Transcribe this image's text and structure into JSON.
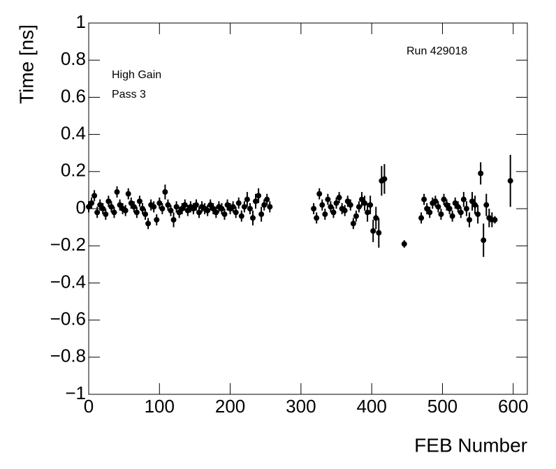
{
  "chart_data": {
    "type": "errorbar-scatter",
    "y_label": "Time [ns]",
    "x_label": "FEB Number",
    "annotations": [
      "Run 429018",
      "High Gain",
      "Pass 3"
    ],
    "color": "#000000",
    "xlim": [
      0,
      620
    ],
    "ylim": [
      -1,
      1
    ],
    "xticks": [
      0,
      100,
      200,
      300,
      400,
      500,
      600
    ],
    "yticks": [
      {
        "value": -1,
        "label": "−1"
      },
      {
        "value": -0.8,
        "label": "−0.8"
      },
      {
        "value": -0.6,
        "label": "−0.6"
      },
      {
        "value": -0.4,
        "label": "−0.4"
      },
      {
        "value": -0.2,
        "label": "−0.2"
      },
      0,
      0.2,
      0.4,
      0.6,
      0.8,
      1
    ],
    "x": [
      0,
      4,
      8,
      12,
      16,
      20,
      24,
      28,
      32,
      36,
      40,
      44,
      48,
      52,
      56,
      60,
      64,
      68,
      72,
      76,
      80,
      84,
      88,
      92,
      96,
      100,
      104,
      108,
      112,
      116,
      120,
      124,
      128,
      132,
      136,
      140,
      144,
      148,
      152,
      156,
      160,
      164,
      168,
      172,
      176,
      180,
      184,
      188,
      192,
      196,
      200,
      204,
      208,
      212,
      216,
      220,
      224,
      228,
      232,
      236,
      240,
      244,
      248,
      252,
      256,
      318,
      322,
      326,
      330,
      334,
      338,
      342,
      346,
      350,
      354,
      358,
      362,
      366,
      370,
      374,
      378,
      382,
      386,
      390,
      394,
      398,
      402,
      406,
      410,
      414,
      418,
      446,
      470,
      474,
      478,
      482,
      486,
      490,
      494,
      498,
      502,
      506,
      510,
      514,
      518,
      522,
      526,
      530,
      534,
      538,
      542,
      546,
      550,
      554,
      558,
      562,
      566,
      570,
      574,
      596
    ],
    "y": [
      0.01,
      0.03,
      0.07,
      -0.02,
      0.02,
      0.0,
      -0.03,
      0.04,
      0.01,
      -0.02,
      0.09,
      0.02,
      0.0,
      -0.01,
      0.08,
      0.03,
      0.01,
      -0.02,
      0.04,
      0.0,
      -0.03,
      -0.08,
      0.02,
      0.01,
      -0.06,
      0.03,
      0.0,
      0.09,
      0.02,
      -0.01,
      -0.06,
      0.01,
      -0.02,
      0.0,
      0.02,
      -0.01,
      0.01,
      0.0,
      0.02,
      -0.02,
      0.01,
      0.0,
      -0.01,
      0.02,
      0.0,
      -0.02,
      0.01,
      0.0,
      -0.03,
      0.02,
      0.0,
      0.01,
      -0.02,
      0.03,
      -0.04,
      0.01,
      0.05,
      0.0,
      -0.05,
      0.04,
      0.07,
      -0.03,
      0.02,
      0.05,
      0.01,
      0.0,
      -0.05,
      0.08,
      0.02,
      -0.03,
      0.05,
      0.01,
      -0.02,
      0.03,
      0.06,
      0.0,
      -0.01,
      0.04,
      0.02,
      -0.08,
      -0.04,
      0.01,
      0.05,
      0.03,
      -0.02,
      0.02,
      -0.12,
      -0.05,
      -0.13,
      0.15,
      0.16,
      -0.19,
      -0.05,
      0.05,
      0.0,
      -0.02,
      0.03,
      0.04,
      0.01,
      -0.03,
      0.05,
      0.02,
      0.0,
      -0.04,
      0.03,
      0.01,
      -0.02,
      0.05,
      0.0,
      -0.06,
      0.04,
      0.02,
      -0.03,
      0.19,
      -0.17,
      0.02,
      -0.05,
      -0.06,
      -0.06,
      0.15
    ],
    "errors": [
      0.03,
      0.03,
      0.03,
      0.03,
      0.03,
      0.03,
      0.03,
      0.03,
      0.03,
      0.03,
      0.03,
      0.03,
      0.03,
      0.03,
      0.03,
      0.03,
      0.03,
      0.03,
      0.03,
      0.03,
      0.03,
      0.03,
      0.03,
      0.03,
      0.03,
      0.03,
      0.03,
      0.04,
      0.03,
      0.03,
      0.04,
      0.03,
      0.03,
      0.03,
      0.03,
      0.03,
      0.03,
      0.03,
      0.03,
      0.03,
      0.03,
      0.03,
      0.03,
      0.03,
      0.03,
      0.03,
      0.03,
      0.03,
      0.03,
      0.03,
      0.03,
      0.03,
      0.03,
      0.03,
      0.03,
      0.03,
      0.04,
      0.03,
      0.04,
      0.04,
      0.04,
      0.04,
      0.03,
      0.03,
      0.03,
      0.03,
      0.03,
      0.03,
      0.03,
      0.03,
      0.03,
      0.03,
      0.03,
      0.03,
      0.03,
      0.03,
      0.03,
      0.03,
      0.03,
      0.03,
      0.03,
      0.03,
      0.04,
      0.04,
      0.05,
      0.05,
      0.06,
      0.06,
      0.08,
      0.08,
      0.08,
      0.02,
      0.03,
      0.03,
      0.03,
      0.03,
      0.03,
      0.03,
      0.03,
      0.03,
      0.03,
      0.03,
      0.03,
      0.03,
      0.03,
      0.03,
      0.03,
      0.04,
      0.04,
      0.04,
      0.05,
      0.05,
      0.05,
      0.06,
      0.09,
      0.06,
      0.05,
      0.04,
      0.02,
      0.14
    ]
  }
}
